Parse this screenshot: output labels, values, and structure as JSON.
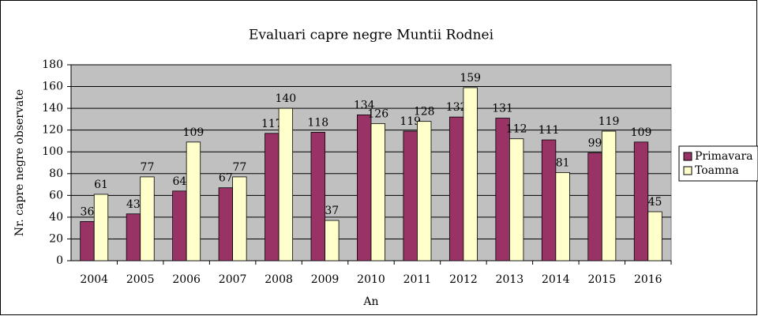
{
  "chart_data": {
    "type": "bar",
    "title": "Evaluari capre negre Muntii Rodnei",
    "x_label": "An",
    "y_label": "Nr. capre negre observate",
    "categories": [
      "2004",
      "2005",
      "2006",
      "2007",
      "2008",
      "2009",
      "2010",
      "2011",
      "2012",
      "2013",
      "2014",
      "2015",
      "2016"
    ],
    "series": [
      {
        "name": "Primavara",
        "color": "#993366",
        "values": [
          36,
          43,
          64,
          67,
          117,
          118,
          134,
          119,
          132,
          131,
          111,
          99,
          109
        ]
      },
      {
        "name": "Toamna",
        "color": "#ffffcc",
        "values": [
          61,
          77,
          109,
          77,
          140,
          37,
          126,
          128,
          159,
          112,
          81,
          119,
          45
        ]
      }
    ],
    "ylim": [
      0,
      180
    ],
    "yticks": [
      0,
      20,
      40,
      60,
      80,
      100,
      120,
      140,
      160,
      180
    ],
    "grid": true,
    "legend": "right"
  }
}
